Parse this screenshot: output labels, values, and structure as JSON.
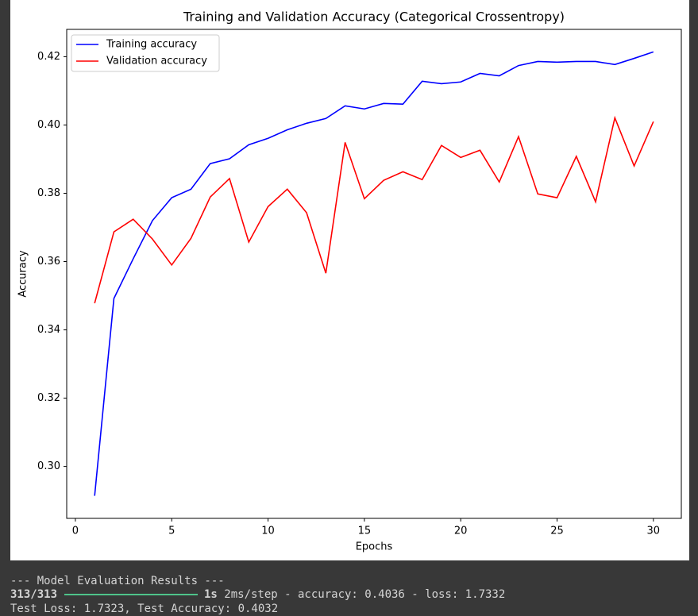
{
  "chart_data": {
    "type": "line",
    "title": "Training and Validation Accuracy (Categorical Crossentropy)",
    "xlabel": "Epochs",
    "ylabel": "Accuracy",
    "x": [
      1,
      2,
      3,
      4,
      5,
      6,
      7,
      8,
      9,
      10,
      11,
      12,
      13,
      14,
      15,
      16,
      17,
      18,
      19,
      20,
      21,
      22,
      23,
      24,
      25,
      26,
      27,
      28,
      29,
      30
    ],
    "series": [
      {
        "name": "Training accuracy",
        "color": "#0000ff",
        "values": [
          0.2914,
          0.3492,
          0.3608,
          0.372,
          0.3787,
          0.3812,
          0.3887,
          0.3901,
          0.3942,
          0.3961,
          0.3986,
          0.4005,
          0.4019,
          0.4056,
          0.4047,
          0.4063,
          0.4061,
          0.4128,
          0.4121,
          0.4126,
          0.4151,
          0.4144,
          0.4174,
          0.4186,
          0.4184,
          0.4186,
          0.4186,
          0.4177,
          0.4195,
          0.4214
        ]
      },
      {
        "name": "Validation accuracy",
        "color": "#ff0000",
        "values": [
          0.3478,
          0.3687,
          0.3724,
          0.3666,
          0.359,
          0.3668,
          0.3789,
          0.3843,
          0.3657,
          0.3761,
          0.3812,
          0.3743,
          0.3566,
          0.3949,
          0.3784,
          0.3838,
          0.3863,
          0.384,
          0.394,
          0.3905,
          0.3926,
          0.3833,
          0.3966,
          0.3798,
          0.3787,
          0.3908,
          0.3775,
          0.4021,
          0.388,
          0.401
        ]
      }
    ],
    "xlim": [
      -0.45,
      31.45
    ],
    "xticks": [
      0,
      5,
      10,
      15,
      20,
      25,
      30
    ],
    "ylim": [
      0.2848,
      0.428
    ],
    "yticks": [
      {
        "value": 0.3,
        "label": "0.30"
      },
      0.32,
      0.34,
      0.36,
      0.38,
      {
        "value": 0.4,
        "label": "0.40"
      },
      0.42
    ],
    "legend": "upper left",
    "grid": false
  },
  "console": {
    "header": "--- Model Evaluation Results ---",
    "progress": "313/313",
    "time": "1s",
    "details": " 2ms/step - accuracy: 0.4036 - loss: 1.7332",
    "result": "Test Loss: 1.7323, Test Accuracy: 0.4032"
  }
}
